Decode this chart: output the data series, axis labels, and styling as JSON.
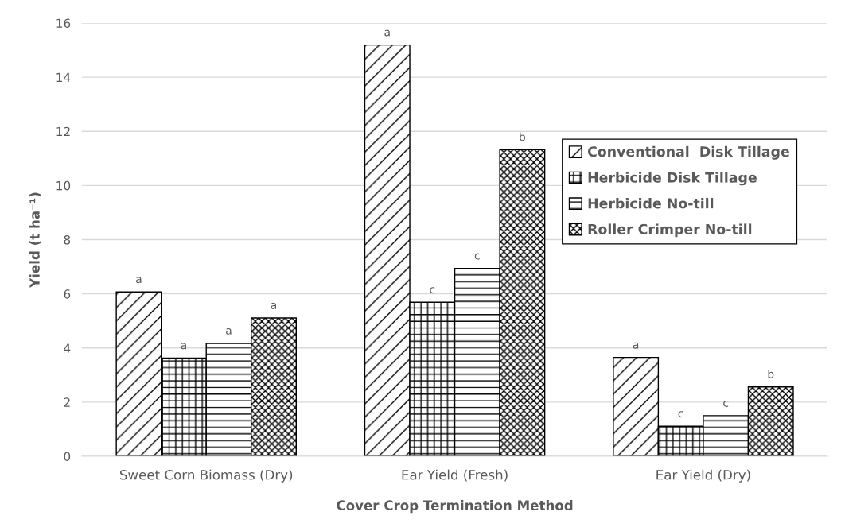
{
  "chart_data": {
    "type": "bar",
    "xlabel": "Cover Crop Termination Method",
    "ylabel": "Yield (t ha⁻¹)",
    "categories": [
      "Sweet Corn Biomass (Dry)",
      "Ear Yield (Fresh)",
      "Ear Yield (Dry)"
    ],
    "series": [
      {
        "name": "Conventional  Disk Tillage",
        "color": "#000000",
        "values": [
          6.07,
          15.19,
          3.65
        ],
        "value_labels": [
          "a",
          "a",
          "a"
        ]
      },
      {
        "name": "Herbicide Disk Tillage",
        "color": "#000000",
        "values": [
          3.63,
          5.69,
          1.11
        ],
        "value_labels": [
          "a",
          "c",
          "c"
        ]
      },
      {
        "name": "Herbicide No-till",
        "color": "#000000",
        "values": [
          4.17,
          6.94,
          1.5
        ],
        "value_labels": [
          "a",
          "c",
          "c"
        ]
      },
      {
        "name": "Roller Crimper No-till",
        "color": "#000000",
        "values": [
          5.11,
          11.32,
          2.56
        ],
        "value_labels": [
          "a",
          "b",
          "b"
        ]
      }
    ],
    "ylim": [
      0,
      16
    ],
    "yticks": [
      0,
      2,
      4,
      6,
      8,
      10,
      12,
      14,
      16
    ],
    "grid": "y",
    "legend": "right"
  }
}
